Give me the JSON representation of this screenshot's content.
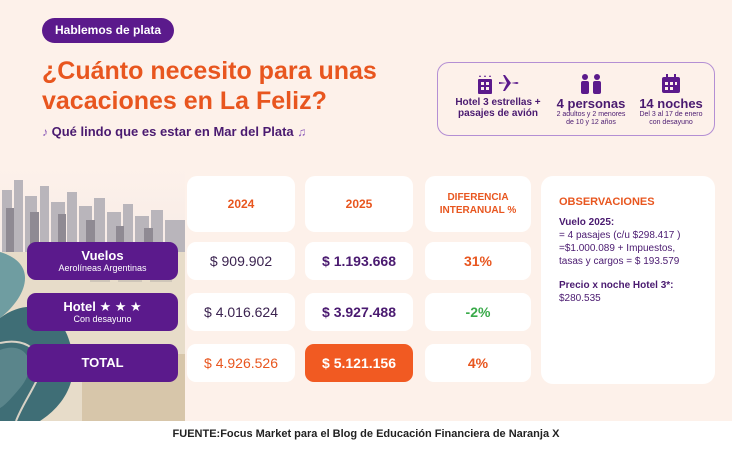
{
  "badge": "Hablemos de plata",
  "title": "¿Cuánto necesito para unas vacaciones en La Feliz?",
  "subtitle": {
    "note_left": "♪",
    "text": "Qué lindo que es estar en Mar del Plata",
    "note_right": "♫"
  },
  "info": {
    "hotel": {
      "line1": "Hotel 3 estrellas +",
      "line2": "pasajes de avión"
    },
    "people": {
      "title": "4 personas",
      "line1": "2 adultos y 2 menores",
      "line2": "de 10 y 12 años"
    },
    "nights": {
      "title": "14 noches",
      "line1": "Del 3 al 17 de enero",
      "line2": "con desayuno"
    }
  },
  "table": {
    "headers": {
      "y2024": "2024",
      "y2025": "2025",
      "diff_line1": "DIFERENCIA",
      "diff_line2": "INTERANUAL %"
    },
    "rows": {
      "vuelos": {
        "label": "Vuelos",
        "sub": "Aerolíneas Argentinas",
        "v2024": "$ 909.902",
        "v2025": "$ 1.193.668",
        "diff": "31%"
      },
      "hotel": {
        "label": "Hotel ★ ★ ★",
        "sub": "Con desayuno",
        "v2024": "$ 4.016.624",
        "v2025": "$ 3.927.488",
        "diff": "-2%"
      },
      "total": {
        "label": "TOTAL",
        "v2024": "$ 4.926.526",
        "v2025": "$ 5.121.156",
        "diff": "4%"
      }
    }
  },
  "observations": {
    "heading": "OBSERVACIONES",
    "flight_title": "Vuelo 2025:",
    "flight_lines": [
      "= 4 pasajes (c/u $298.417 )",
      "=$1.000.089 + Impuestos,",
      "tasas y cargos = $ 193.579"
    ],
    "hotel_title": "Precio x noche Hotel 3*:",
    "hotel_value": "$280.535"
  },
  "source": "FUENTE:Focus Market para el Blog de Educación Financiera de Naranja X",
  "colors": {
    "purple": "#5b1a8c",
    "orange": "#e8561f",
    "green": "#3aaa4a",
    "background": "#fdf1ea"
  }
}
